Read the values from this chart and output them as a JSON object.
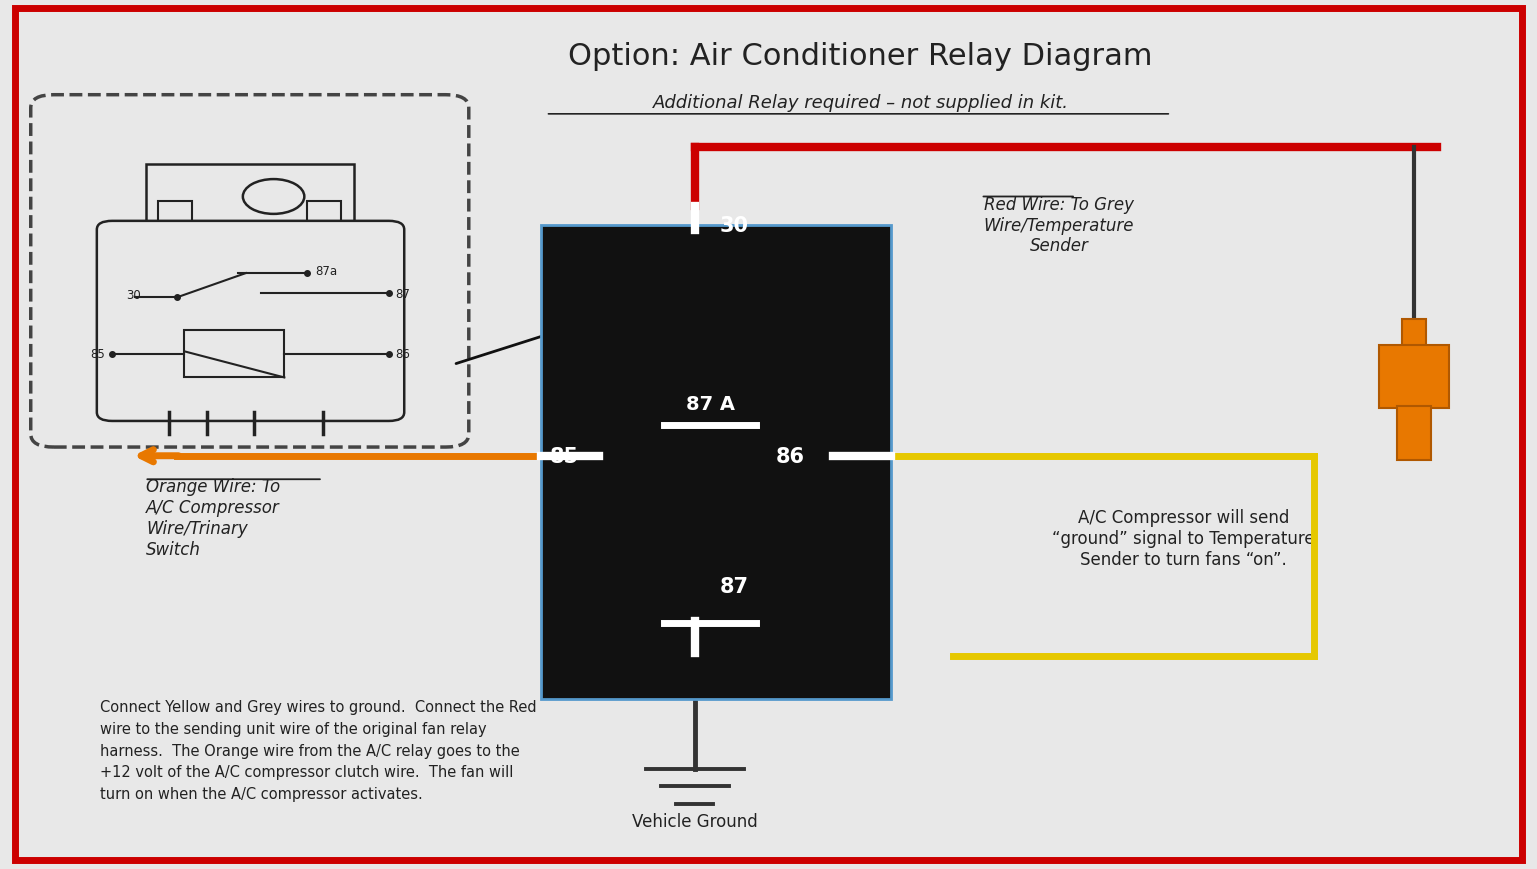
{
  "title": "Option: Air Conditioner Relay Diagram",
  "subtitle": "Additional Relay required – not supplied in kit.",
  "bg_color": "#e8e8e8",
  "border_color": "#cc0000",
  "red_wire_color": "#cc0000",
  "yellow_wire_color": "#e6c800",
  "orange_color": "#e87800",
  "text_color": "#222222",
  "bottom_text": "Connect Yellow and Grey wires to ground.  Connect the Red\nwire to the sending unit wire of the original fan relay\nharness.  The Orange wire from the A/C relay goes to the\n+12 volt of the A/C compressor clutch wire.  The fan will\nturn on when the A/C compressor activates.",
  "red_wire_label": "Red Wire: To Grey\nWire/Temperature\nSender",
  "orange_wire_label": "Orange Wire: To\nA/C Compressor\nWire/Trinary\nSwitch",
  "ac_compressor_label": "A/C Compressor will send\n“ground” signal to Temperature\nSender to turn fans “on”.",
  "vehicle_ground_label": "Vehicle Ground"
}
